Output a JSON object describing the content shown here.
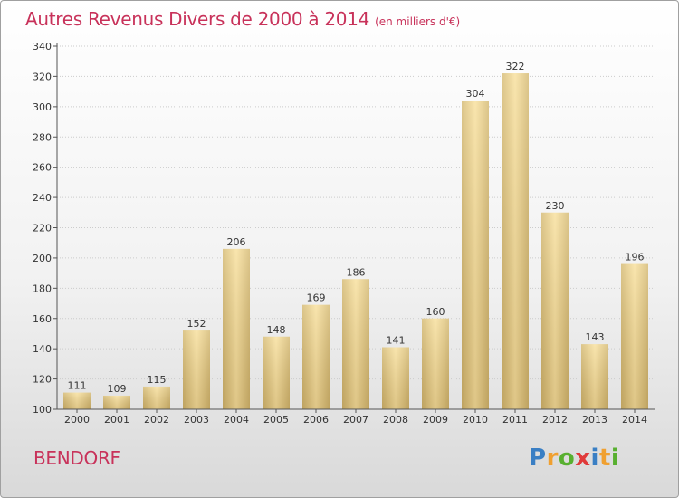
{
  "chart_data": {
    "type": "bar",
    "title": "Autres Revenus Divers de 2000 à 2014",
    "subtitle": "(en milliers d'€)",
    "categories": [
      "2000",
      "2001",
      "2002",
      "2003",
      "2004",
      "2005",
      "2006",
      "2007",
      "2008",
      "2009",
      "2010",
      "2011",
      "2012",
      "2013",
      "2014"
    ],
    "values": [
      111,
      109,
      115,
      152,
      206,
      148,
      169,
      186,
      141,
      160,
      304,
      322,
      230,
      143,
      196
    ],
    "ylim": [
      100,
      340
    ],
    "yticks": [
      100,
      120,
      140,
      160,
      180,
      200,
      220,
      240,
      260,
      280,
      300,
      320,
      340
    ],
    "grid": true,
    "colors": {
      "bar_light": "#f6dea0",
      "bar_dark": "#c9ad6a",
      "axis": "#555555",
      "text": "#333333"
    }
  },
  "footer": {
    "commune": "BENDORF",
    "logo": {
      "letters": [
        "P",
        "r",
        "o",
        "x",
        "i",
        "t",
        "i"
      ],
      "colors": [
        "#3a7fc4",
        "#f0a030",
        "#58b030",
        "#e03a3a",
        "#3a7fc4",
        "#f0a030",
        "#58b030"
      ]
    }
  }
}
